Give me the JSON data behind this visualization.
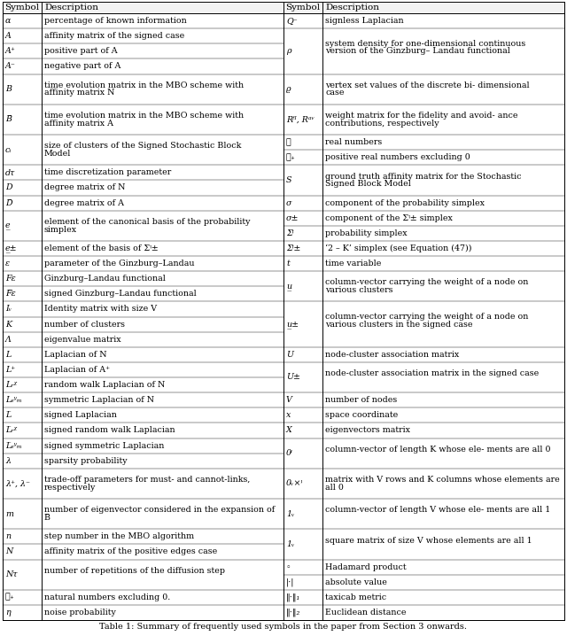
{
  "title": "Table 1: Summary of frequently used symbols in the paper from Section 3 onwards.",
  "left_rows": [
    [
      "α",
      "percentage of known information"
    ],
    [
      "A",
      "affinity matrix of the signed case"
    ],
    [
      "A⁺",
      "positive part of A"
    ],
    [
      "A⁻",
      "negative part of A"
    ],
    [
      "B",
      "time evolution matrix in the MBO scheme with affinity matrix N"
    ],
    [
      "B̅",
      "time evolution matrix in the MBO scheme with affinity matrix A"
    ],
    [
      "cᵢ",
      "size of clusters of the Signed Stochastic Block Model"
    ],
    [
      "dτ",
      "time discretization parameter"
    ],
    [
      "D",
      "degree matrix of N"
    ],
    [
      "D̅",
      "degree matrix of A"
    ],
    [
      "e̲",
      "element of the canonical basis of the probability simplex"
    ],
    [
      "e̲±",
      "element of the basis of Σᵎ±"
    ],
    [
      "ε",
      "parameter of the Ginzburg–Landau"
    ],
    [
      "Fε",
      "Ginzburg–Landau functional"
    ],
    [
      "F̅ε",
      "signed Ginzburg–Landau functional"
    ],
    [
      "Iᵥ",
      "Identity matrix with size V"
    ],
    [
      "K",
      "number of clusters"
    ],
    [
      "Λ",
      "eigenvalue matrix"
    ],
    [
      "L",
      "Laplacian of N"
    ],
    [
      "L⁺",
      "Laplacian of A⁺"
    ],
    [
      "Lᵣᵡ",
      "random walk Laplacian of N"
    ],
    [
      "Lₛʸₘ",
      "symmetric Laplacian of N"
    ],
    [
      "L̅",
      "signed Laplacian"
    ],
    [
      "L̅ᵣᵡ",
      "signed random walk Laplacian"
    ],
    [
      "L̅ₛʸₘ",
      "signed symmetric Laplacian"
    ],
    [
      "λ",
      "sparsity probability"
    ],
    [
      "λ⁺, λ⁻",
      "trade-off parameters for must- and cannot-links, respectively"
    ],
    [
      "m",
      "number of eigenvector considered in the expansion of B̅"
    ],
    [
      "n",
      "step number in the MBO algorithm"
    ],
    [
      "N",
      "affinity matrix of the positive edges case"
    ],
    [
      "Nτ",
      "number of repetitions of the diffusion step"
    ],
    [
      "ℕ₊",
      "natural numbers excluding 0."
    ],
    [
      "η",
      "noise probability"
    ]
  ],
  "right_rows": [
    [
      "Q⁻",
      "signless Laplacian"
    ],
    [
      "ρ",
      "system density for one-dimensional continuous version of the Ginzburg– Landau functional"
    ],
    [
      "ϱ",
      "vertex set values of the discrete bi- dimensional case"
    ],
    [
      "Rᶠᴵ, Rᵃᵛ",
      "weight matrix for the fidelity and avoid- ance contributions, respectively"
    ],
    [
      "ℝ",
      "real numbers"
    ],
    [
      "ℝ₊",
      "positive real numbers excluding 0"
    ],
    [
      "S",
      "ground truth affinity matrix for the Stochastic Signed Block Model"
    ],
    [
      "σ",
      "component of the probability simplex"
    ],
    [
      "σ±",
      "component of the Σᵎ± simplex"
    ],
    [
      "Σᵎ",
      "probability simplex"
    ],
    [
      "Σᵎ±",
      "‘2 – K’ simplex (see Equation (47))"
    ],
    [
      "t",
      "time variable"
    ],
    [
      "u̲",
      "column-vector carrying the weight of a node on various clusters"
    ],
    [
      "u̲±",
      "column-vector carrying the weight of a node on various clusters in the signed case"
    ],
    [
      "U",
      "node-cluster association matrix"
    ],
    [
      "U±",
      "node-cluster association matrix in the signed case"
    ],
    [
      "V",
      "number of nodes"
    ],
    [
      "x",
      "space coordinate"
    ],
    [
      "X",
      "eigenvectors matrix"
    ],
    [
      "0ᵎ",
      "column-vector of length K whose ele- ments are all 0"
    ],
    [
      "0ᵥ×ᵎ",
      "matrix with V rows and K columns whose elements are all 0"
    ],
    [
      "1ᵥ",
      "column-vector of length V whose ele- ments are all 1"
    ],
    [
      "1ᵥ",
      "square matrix of size V whose elements are all 1"
    ],
    [
      "◦",
      "Hadamard product"
    ],
    [
      "|·|",
      "absolute value"
    ],
    [
      "‖·‖₁",
      "taxicab metric"
    ],
    [
      "‖·‖₂",
      "Euclidean distance"
    ]
  ],
  "left_nlines": [
    1,
    1,
    1,
    1,
    2,
    2,
    2,
    1,
    1,
    1,
    2,
    1,
    1,
    1,
    1,
    1,
    1,
    1,
    1,
    1,
    1,
    1,
    1,
    1,
    1,
    1,
    2,
    2,
    1,
    1,
    2,
    1,
    1
  ],
  "right_nlines": [
    1,
    3,
    2,
    2,
    1,
    1,
    2,
    1,
    1,
    1,
    1,
    1,
    2,
    3,
    1,
    2,
    1,
    1,
    1,
    2,
    2,
    2,
    2,
    1,
    1,
    1,
    1
  ],
  "bg_color": "#ffffff",
  "border_color": "#000000"
}
